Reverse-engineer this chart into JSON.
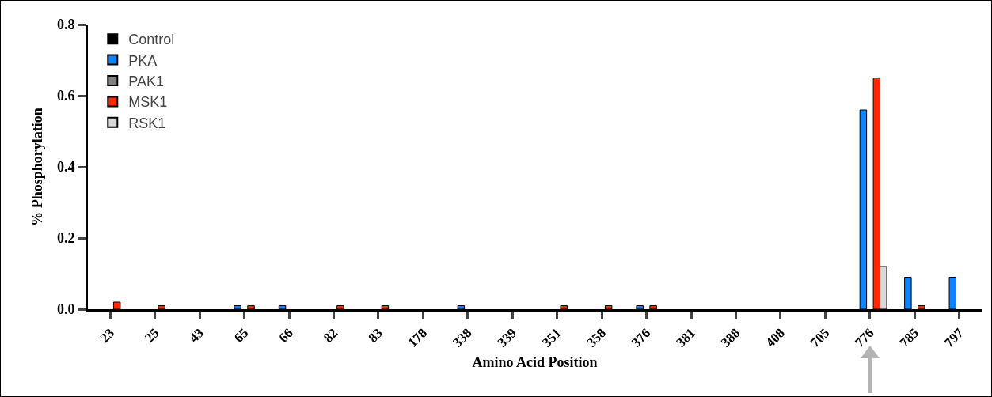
{
  "chart_data": {
    "type": "bar",
    "xlabel": "Amino Acid Position",
    "ylabel": "% Phosphorylation",
    "categories": [
      "23",
      "25",
      "43",
      "65",
      "66",
      "82",
      "83",
      "178",
      "338",
      "339",
      "351",
      "358",
      "376",
      "381",
      "388",
      "408",
      "705",
      "776",
      "785",
      "797"
    ],
    "series": [
      {
        "name": "Control",
        "color": "#000000",
        "values": [
          0,
          0,
          0,
          0,
          0,
          0,
          0,
          0,
          0,
          0,
          0,
          0,
          0,
          0,
          0,
          0,
          0,
          0,
          0,
          0
        ]
      },
      {
        "name": "PKA",
        "color": "#0a84ff",
        "values": [
          0,
          0,
          0,
          0.01,
          0.01,
          0,
          0,
          0,
          0.01,
          0,
          0,
          0,
          0.01,
          0,
          0,
          0,
          0,
          0.56,
          0.09,
          0.09
        ]
      },
      {
        "name": "PAK1",
        "color": "#808080",
        "values": [
          0,
          0,
          0,
          0,
          0,
          0,
          0,
          0,
          0,
          0,
          0,
          0,
          0,
          0,
          0,
          0,
          0,
          0,
          0,
          0
        ]
      },
      {
        "name": "MSK1",
        "color": "#ff2a00",
        "values": [
          0.02,
          0.01,
          0,
          0.01,
          0,
          0.01,
          0.01,
          0,
          0,
          0,
          0.01,
          0.01,
          0.01,
          0,
          0,
          0,
          0,
          0.65,
          0.01,
          0
        ]
      },
      {
        "name": "RSK1",
        "color": "#d9d9d9",
        "values": [
          0,
          0,
          0,
          0,
          0,
          0,
          0,
          0,
          0,
          0,
          0,
          0,
          0,
          0,
          0,
          0,
          0,
          0.12,
          0,
          0
        ]
      }
    ],
    "ylim": [
      0,
      0.8
    ],
    "yticks": [
      {
        "value": 0,
        "label": "0.0"
      },
      {
        "value": 0.2,
        "label": "0.2"
      },
      {
        "value": 0.4,
        "label": "0.4"
      },
      {
        "value": 0.6,
        "label": "0.6"
      },
      {
        "value": 0.8,
        "label": "0.8"
      }
    ],
    "grid": false,
    "legend": "top left"
  }
}
